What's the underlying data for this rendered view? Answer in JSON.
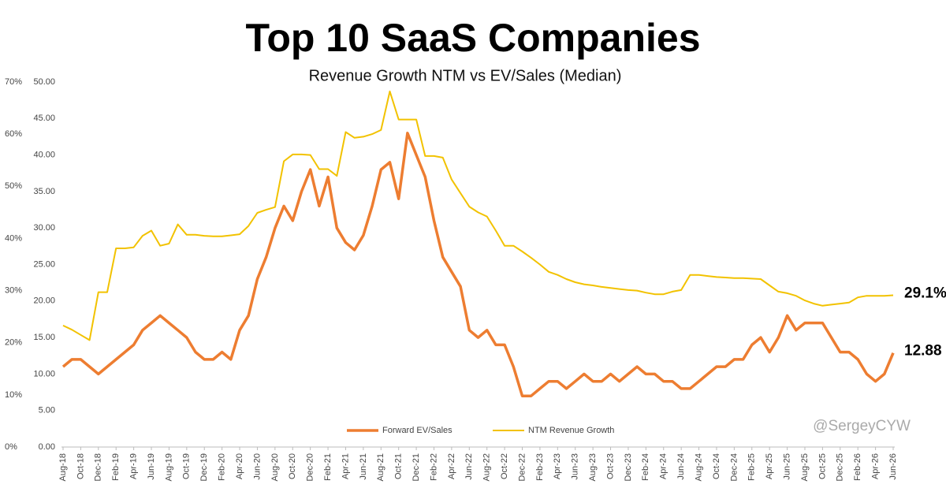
{
  "chart_data": {
    "type": "line",
    "title": "Top 10 SaaS Companies",
    "subtitle": "Revenue Growth NTM vs EV/Sales (Median)",
    "watermark": "@SergeyCYW",
    "categories": [
      "Aug-18",
      null,
      "Oct-18",
      null,
      "Dec-18",
      null,
      "Feb-19",
      null,
      "Apr-19",
      null,
      "Jun-19",
      null,
      "Aug-19",
      null,
      "Oct-19",
      null,
      "Dec-19",
      null,
      "Feb-20",
      null,
      "Apr-20",
      null,
      "Jun-20",
      null,
      "Aug-20",
      null,
      "Oct-20",
      null,
      "Dec-20",
      null,
      "Feb-21",
      null,
      "Apr-21",
      null,
      "Jun-21",
      null,
      "Aug-21",
      null,
      "Oct-21",
      null,
      "Dec-21",
      null,
      "Feb-22",
      null,
      "Apr-22",
      null,
      "Jun-22",
      null,
      "Aug-22",
      null,
      "Oct-22",
      null,
      "Dec-22",
      null,
      "Feb-23",
      null,
      "Apr-23",
      null,
      "Jun-23",
      null,
      "Aug-23",
      null,
      "Oct-23",
      null,
      "Dec-23",
      null,
      "Feb-24",
      null,
      "Apr-24",
      null,
      "Jun-24",
      null,
      "Aug-24",
      null,
      "Oct-24",
      null,
      "Dec-24",
      null,
      "Feb-25",
      null,
      "Apr-25",
      null,
      "Jun-25",
      null,
      "Aug-25",
      null,
      "Oct-25",
      null,
      "Dec-25",
      null,
      "Feb-26",
      null,
      "Apr-26",
      null,
      "Jun-26"
    ],
    "series": [
      {
        "name": "Forward EV/Sales",
        "color": "#ED7D31",
        "axis": "y",
        "values": [
          11,
          12,
          12,
          11,
          10,
          11,
          12,
          13,
          14,
          16,
          17,
          18,
          17,
          16,
          15,
          13,
          12,
          12,
          13,
          12,
          16,
          18,
          23,
          26,
          30,
          33,
          31,
          35,
          38,
          33,
          37,
          30,
          28,
          27,
          29,
          33,
          38,
          39,
          34,
          43,
          40,
          37,
          31,
          26,
          24,
          22,
          16,
          15,
          16,
          14,
          14,
          11,
          7,
          7,
          8,
          9,
          9,
          8,
          9,
          10,
          9,
          9,
          10,
          9,
          10,
          11,
          10,
          10,
          9,
          9,
          8,
          8,
          9,
          10,
          11,
          11,
          12,
          12,
          14,
          15,
          13,
          15,
          18,
          16,
          17,
          17,
          17,
          15,
          13,
          13,
          12,
          10,
          9,
          10,
          12.88
        ]
      },
      {
        "name": "NTM Revenue Growth",
        "color": "#F2C200",
        "axis": "y2",
        "values": [
          23.3,
          22.5,
          21.5,
          20.5,
          29.7,
          29.7,
          38.1,
          38.1,
          38.3,
          40.5,
          41.5,
          38.6,
          39,
          42.7,
          40.7,
          40.7,
          40.5,
          40.4,
          40.4,
          40.6,
          40.8,
          42.4,
          44.9,
          45.5,
          46,
          54.8,
          56.1,
          56.1,
          56,
          53.3,
          53.3,
          52,
          60.4,
          59.3,
          59.5,
          60,
          60.8,
          68.2,
          62.8,
          62.8,
          62.8,
          55.8,
          55.8,
          55.5,
          51.3,
          48.7,
          46.1,
          45,
          44.2,
          41.5,
          38.6,
          38.6,
          37.5,
          36.3,
          35,
          33.6,
          33,
          32.2,
          31.6,
          31.2,
          31,
          30.7,
          30.5,
          30.3,
          30.1,
          30,
          29.6,
          29.3,
          29.3,
          29.8,
          30.1,
          33,
          33,
          32.8,
          32.6,
          32.5,
          32.4,
          32.4,
          32.3,
          32.2,
          31,
          29.8,
          29.5,
          29,
          28.1,
          27.5,
          27.1,
          27.3,
          27.5,
          27.7,
          28.7,
          29,
          29,
          29,
          29.1
        ],
        "value_labels": {
          "94": "29.1%"
        }
      }
    ],
    "ylim": [
      0,
      50
    ],
    "yticks": [
      {
        "value": 0,
        "label": "0.00"
      },
      {
        "value": 5,
        "label": "5.00"
      },
      {
        "value": 10,
        "label": "10.00"
      },
      {
        "value": 15,
        "label": "15.00"
      },
      {
        "value": 20,
        "label": "20.00"
      },
      {
        "value": 25,
        "label": "25.00"
      },
      {
        "value": 30,
        "label": "30.00"
      },
      {
        "value": 35,
        "label": "35.00"
      },
      {
        "value": 40,
        "label": "40.00"
      },
      {
        "value": 45,
        "label": "45.00"
      },
      {
        "value": 50,
        "label": "50.00"
      }
    ],
    "y2lim": [
      0,
      70
    ],
    "y2ticks": [
      {
        "value": 0,
        "label": "0%"
      },
      {
        "value": 10,
        "label": "10%"
      },
      {
        "value": 20,
        "label": "20%"
      },
      {
        "value": 30,
        "label": "30%"
      },
      {
        "value": 40,
        "label": "40%"
      },
      {
        "value": 50,
        "label": "50%"
      },
      {
        "value": 60,
        "label": "60%"
      },
      {
        "value": 70,
        "label": "70%"
      }
    ],
    "legend": "bottom",
    "grid": false
  }
}
